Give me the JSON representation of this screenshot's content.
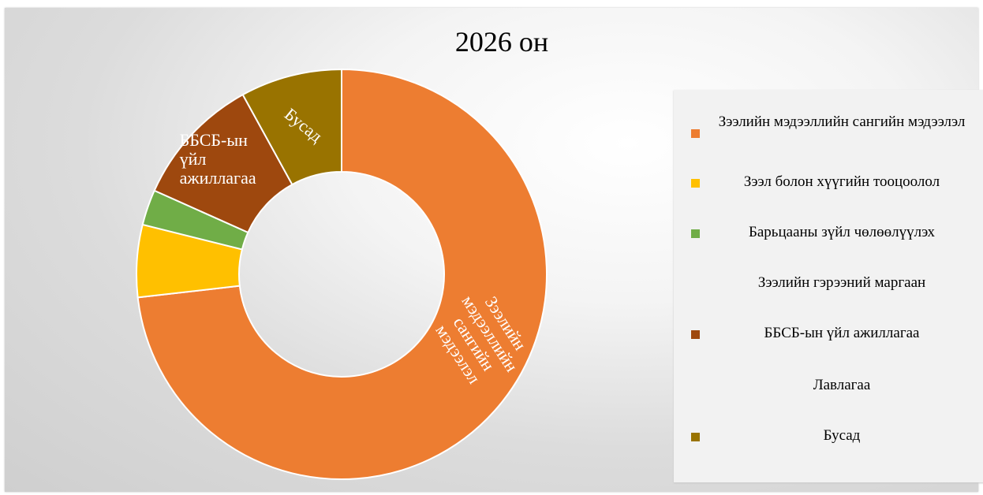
{
  "chart_data": {
    "type": "pie",
    "donut": true,
    "title": "2026 он",
    "legend_position": "right",
    "slices": [
      {
        "label": "Зээлийн мэдээллийн сангийн мэдээлэл",
        "value": 73.2,
        "color": "#ED7D31",
        "data_label": "Зээлийн мэдээллийн сангийн мэдээлэл"
      },
      {
        "label": "Зээл болон хүүгийн тооцоолол",
        "value": 5.7,
        "color": "#FFC000",
        "data_label": ""
      },
      {
        "label": "Барьцааны зүйл чөлөөлүүлэх",
        "value": 2.8,
        "color": "#70AD47",
        "data_label": ""
      },
      {
        "label": "Зээлийн гэрээний маргаан",
        "value": 0,
        "color": "#4472C4",
        "data_label": ""
      },
      {
        "label": "ББСБ-ын үйл ажиллагаа",
        "value": 10.3,
        "color": "#9E480E",
        "data_label": "ББСБ-ын үйл ажиллагаа"
      },
      {
        "label": "Лавлагаа",
        "value": 0,
        "color": "#5B9BD5",
        "data_label": ""
      },
      {
        "label": "Бусад",
        "value": 8.0,
        "color": "#997300",
        "data_label": "Бусад"
      }
    ]
  }
}
